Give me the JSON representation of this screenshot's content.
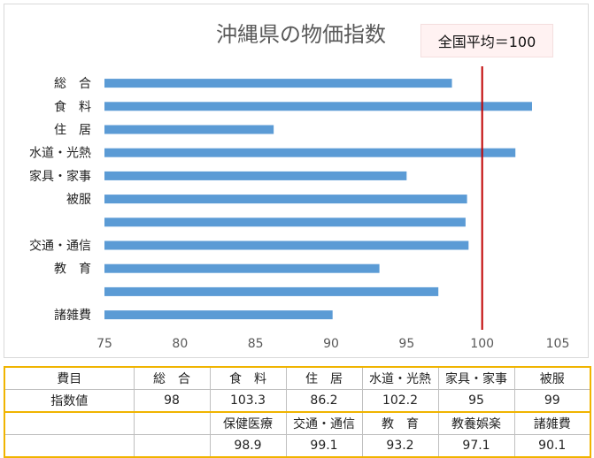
{
  "chart_data": {
    "type": "bar",
    "orientation": "horizontal",
    "title": "沖縄県の物価指数",
    "annotation": "全国平均＝100",
    "reference_line": 100,
    "reference_color": "#c00000",
    "bar_color": "#5b9bd5",
    "xlim": [
      75,
      105
    ],
    "xticks": [
      75,
      80,
      85,
      90,
      95,
      100,
      105
    ],
    "categories": [
      "総　合",
      "食　料",
      "住　居",
      "水道・光熱",
      "家具・家事",
      "被服",
      "",
      "交通・通信",
      "教　育",
      "",
      "諸雑費"
    ],
    "values": [
      98,
      103.3,
      86.2,
      102.2,
      95,
      99,
      98.9,
      99.1,
      93.2,
      97.1,
      90.1
    ]
  },
  "table": {
    "row1": [
      "費目",
      "総　合",
      "食　料",
      "住　居",
      "水道・光熱",
      "家具・家事",
      "被服"
    ],
    "row2": [
      "指数値",
      "98",
      "103.3",
      "86.2",
      "102.2",
      "95",
      "99"
    ],
    "row3": [
      "",
      "",
      "保健医療",
      "交通・通信",
      "教　育",
      "教養娯楽",
      "諸雑費"
    ],
    "row4": [
      "",
      "",
      "98.9",
      "99.1",
      "93.2",
      "97.1",
      "90.1"
    ]
  }
}
